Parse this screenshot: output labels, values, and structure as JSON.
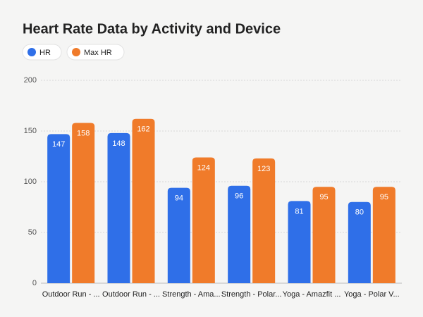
{
  "chart_data": {
    "type": "bar",
    "title": "Heart Rate Data by Activity and Device",
    "categories": [
      "Outdoor Run - ...",
      "Outdoor Run - ...",
      "Strength - Ama...",
      "Strength - Polar...",
      "Yoga - Amazfit ...",
      "Yoga - Polar V..."
    ],
    "series": [
      {
        "name": "HR",
        "color": "#2f6fe8",
        "values": [
          147,
          148,
          94,
          96,
          81,
          80
        ]
      },
      {
        "name": "Max HR",
        "color": "#f07b2a",
        "values": [
          158,
          162,
          124,
          123,
          95,
          95
        ]
      }
    ],
    "ylim": [
      0,
      200
    ],
    "yticks": [
      0,
      50,
      100,
      150,
      200
    ],
    "grid": true,
    "legend": "top-left"
  }
}
